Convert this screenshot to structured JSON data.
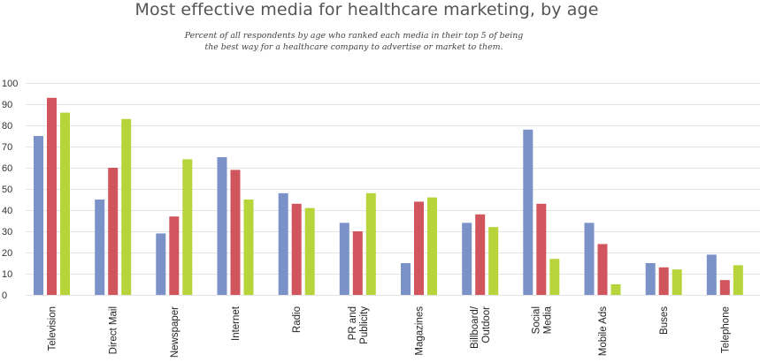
{
  "chart_data": {
    "type": "bar",
    "title": "Most effective media for healthcare marketing, by age",
    "subtitle_lines": [
      "Percent of all respondents by age who ranked each media in their top 5 of being",
      "the best way for a healthcare company to advertise or market to them."
    ],
    "xlabel": "",
    "ylabel": "",
    "ylim": [
      0,
      100
    ],
    "yticks": [
      0,
      10,
      20,
      30,
      40,
      50,
      60,
      70,
      80,
      90,
      100
    ],
    "grid": true,
    "legend": "none",
    "categories": [
      [
        "Television"
      ],
      [
        "Direct Mail"
      ],
      [
        "Newspaper"
      ],
      [
        "Internet"
      ],
      [
        "Radio"
      ],
      [
        "PR and",
        "Publicity"
      ],
      [
        "Magazines"
      ],
      [
        "Billboard/",
        "Outdoor"
      ],
      [
        "Social",
        "Media"
      ],
      [
        "Mobile Ads"
      ],
      [
        "Buses"
      ],
      [
        "Telephone"
      ]
    ],
    "series": [
      {
        "color": "#7b92c9",
        "values": [
          75,
          45,
          29,
          65,
          48,
          34,
          15,
          34,
          78,
          34,
          15,
          19
        ]
      },
      {
        "color": "#d1555d",
        "values": [
          93,
          60,
          37,
          59,
          43,
          30,
          44,
          38,
          43,
          24,
          13,
          7
        ]
      },
      {
        "color": "#b8d43b",
        "values": [
          86,
          83,
          64,
          45,
          41,
          48,
          46,
          32,
          17,
          5,
          12,
          14
        ]
      }
    ],
    "gridline_color": "#e4e4e4"
  }
}
